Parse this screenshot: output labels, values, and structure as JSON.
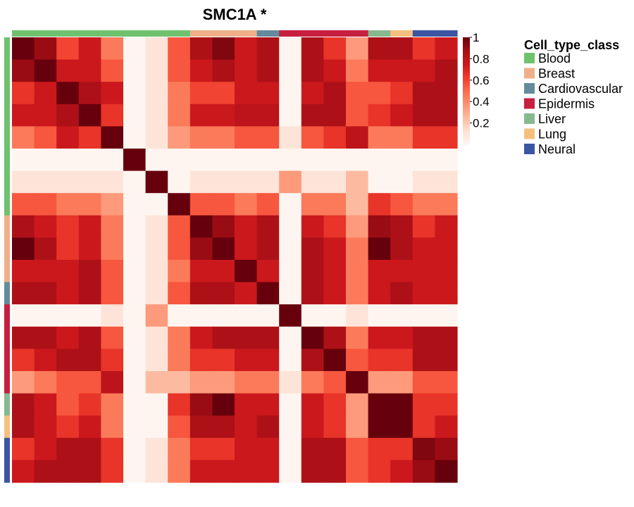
{
  "chart_data": {
    "type": "heatmap",
    "title": "SMC1A *",
    "annotation_legend": {
      "title": "Cell_type_class",
      "classes": [
        {
          "name": "Blood",
          "color": "#6EC26E"
        },
        {
          "name": "Breast",
          "color": "#EFB089"
        },
        {
          "name": "Cardiovascular",
          "color": "#638B9C"
        },
        {
          "name": "Epidermis",
          "color": "#C71F3F"
        },
        {
          "name": "Liver",
          "color": "#87B98E"
        },
        {
          "name": "Lung",
          "color": "#F5C07E"
        },
        {
          "name": "Neural",
          "color": "#3B55A3"
        }
      ]
    },
    "sample_classes": [
      "Blood",
      "Blood",
      "Blood",
      "Blood",
      "Blood",
      "Blood",
      "Blood",
      "Blood",
      "Breast",
      "Breast",
      "Breast",
      "Cardiovascular",
      "Epidermis",
      "Epidermis",
      "Epidermis",
      "Epidermis",
      "Liver",
      "Lung",
      "Neural",
      "Neural"
    ],
    "colorbar": {
      "range": [
        0,
        1
      ],
      "ticks": [
        "1",
        "0.8",
        "0.6",
        "0.4",
        "0.2"
      ],
      "tick_values": [
        1,
        0.8,
        0.6,
        0.4,
        0.2
      ],
      "colors": [
        "#FFF5F0",
        "#FEE0D2",
        "#FCBBA1",
        "#FC9272",
        "#FB6A4A",
        "#EF3B2C",
        "#CB181D",
        "#A50F15",
        "#67000D"
      ]
    },
    "matrix": [
      [
        1.0,
        0.9,
        0.6,
        0.75,
        0.45,
        0.0,
        0.1,
        0.55,
        0.85,
        0.95,
        0.75,
        0.85,
        0.0,
        0.85,
        0.65,
        0.35,
        0.85,
        0.85,
        0.65,
        0.75
      ],
      [
        0.9,
        1.0,
        0.75,
        0.75,
        0.55,
        0.0,
        0.1,
        0.55,
        0.75,
        0.85,
        0.75,
        0.85,
        0.0,
        0.85,
        0.75,
        0.45,
        0.75,
        0.75,
        0.75,
        0.85
      ],
      [
        0.65,
        0.75,
        1.0,
        0.85,
        0.75,
        0.0,
        0.1,
        0.45,
        0.6,
        0.6,
        0.75,
        0.75,
        0.0,
        0.75,
        0.85,
        0.55,
        0.55,
        0.65,
        0.85,
        0.85
      ],
      [
        0.75,
        0.75,
        0.85,
        1.0,
        0.65,
        0.0,
        0.1,
        0.45,
        0.75,
        0.75,
        0.8,
        0.8,
        0.0,
        0.85,
        0.85,
        0.55,
        0.65,
        0.75,
        0.85,
        0.85
      ],
      [
        0.45,
        0.55,
        0.75,
        0.65,
        1.0,
        0.0,
        0.1,
        0.35,
        0.45,
        0.45,
        0.55,
        0.55,
        0.1,
        0.55,
        0.65,
        0.8,
        0.45,
        0.45,
        0.65,
        0.65
      ],
      [
        0.0,
        0.0,
        0.0,
        0.0,
        0.0,
        1.0,
        0.0,
        0.0,
        0.0,
        0.0,
        0.0,
        0.0,
        0.0,
        0.0,
        0.0,
        0.0,
        0.0,
        0.0,
        0.0,
        0.0
      ],
      [
        0.1,
        0.1,
        0.1,
        0.1,
        0.1,
        0.0,
        1.0,
        0.0,
        0.1,
        0.1,
        0.1,
        0.1,
        0.35,
        0.1,
        0.1,
        0.25,
        0.0,
        0.0,
        0.1,
        0.1
      ],
      [
        0.55,
        0.55,
        0.45,
        0.45,
        0.35,
        0.0,
        0.0,
        1.0,
        0.55,
        0.55,
        0.45,
        0.55,
        0.0,
        0.45,
        0.45,
        0.25,
        0.65,
        0.55,
        0.45,
        0.45
      ],
      [
        0.85,
        0.75,
        0.65,
        0.75,
        0.45,
        0.0,
        0.1,
        0.55,
        1.0,
        0.9,
        0.75,
        0.85,
        0.0,
        0.75,
        0.65,
        0.35,
        0.9,
        0.85,
        0.65,
        0.75
      ],
      [
        1.0,
        0.85,
        0.65,
        0.75,
        0.45,
        0.0,
        0.1,
        0.55,
        0.9,
        1.0,
        0.75,
        0.85,
        0.0,
        0.85,
        0.75,
        0.45,
        1.0,
        0.85,
        0.75,
        0.75
      ],
      [
        0.75,
        0.75,
        0.75,
        0.85,
        0.55,
        0.0,
        0.1,
        0.45,
        0.75,
        0.75,
        1.0,
        0.75,
        0.0,
        0.85,
        0.75,
        0.45,
        0.75,
        0.75,
        0.75,
        0.75
      ],
      [
        0.85,
        0.85,
        0.75,
        0.85,
        0.55,
        0.0,
        0.1,
        0.55,
        0.85,
        0.85,
        0.75,
        1.0,
        0.0,
        0.85,
        0.75,
        0.45,
        0.75,
        0.85,
        0.75,
        0.75
      ],
      [
        0.0,
        0.0,
        0.0,
        0.0,
        0.1,
        0.0,
        0.35,
        0.0,
        0.0,
        0.0,
        0.0,
        0.0,
        1.0,
        0.0,
        0.0,
        0.1,
        0.0,
        0.0,
        0.0,
        0.0
      ],
      [
        0.85,
        0.85,
        0.75,
        0.85,
        0.55,
        0.0,
        0.1,
        0.45,
        0.75,
        0.85,
        0.85,
        0.85,
        0.0,
        1.0,
        0.85,
        0.45,
        0.75,
        0.75,
        0.85,
        0.85
      ],
      [
        0.65,
        0.75,
        0.85,
        0.85,
        0.65,
        0.0,
        0.1,
        0.45,
        0.65,
        0.65,
        0.75,
        0.75,
        0.0,
        0.85,
        1.0,
        0.55,
        0.65,
        0.65,
        0.85,
        0.85
      ],
      [
        0.35,
        0.45,
        0.55,
        0.55,
        0.8,
        0.0,
        0.25,
        0.25,
        0.35,
        0.35,
        0.45,
        0.45,
        0.1,
        0.45,
        0.55,
        1.0,
        0.35,
        0.35,
        0.55,
        0.55
      ],
      [
        0.85,
        0.75,
        0.55,
        0.65,
        0.45,
        0.0,
        0.0,
        0.65,
        0.9,
        1.0,
        0.75,
        0.75,
        0.0,
        0.75,
        0.65,
        0.35,
        1.0,
        1.0,
        0.65,
        0.65
      ],
      [
        0.85,
        0.75,
        0.65,
        0.75,
        0.45,
        0.0,
        0.0,
        0.55,
        0.85,
        0.85,
        0.75,
        0.85,
        0.0,
        0.75,
        0.65,
        0.35,
        1.0,
        1.0,
        0.65,
        0.75
      ],
      [
        0.65,
        0.75,
        0.85,
        0.85,
        0.65,
        0.0,
        0.1,
        0.45,
        0.65,
        0.65,
        0.75,
        0.75,
        0.0,
        0.85,
        0.85,
        0.55,
        0.65,
        0.65,
        0.95,
        0.9
      ],
      [
        0.75,
        0.85,
        0.85,
        0.85,
        0.65,
        0.0,
        0.1,
        0.45,
        0.75,
        0.75,
        0.75,
        0.75,
        0.0,
        0.85,
        0.85,
        0.55,
        0.65,
        0.75,
        0.9,
        1.0
      ]
    ]
  }
}
